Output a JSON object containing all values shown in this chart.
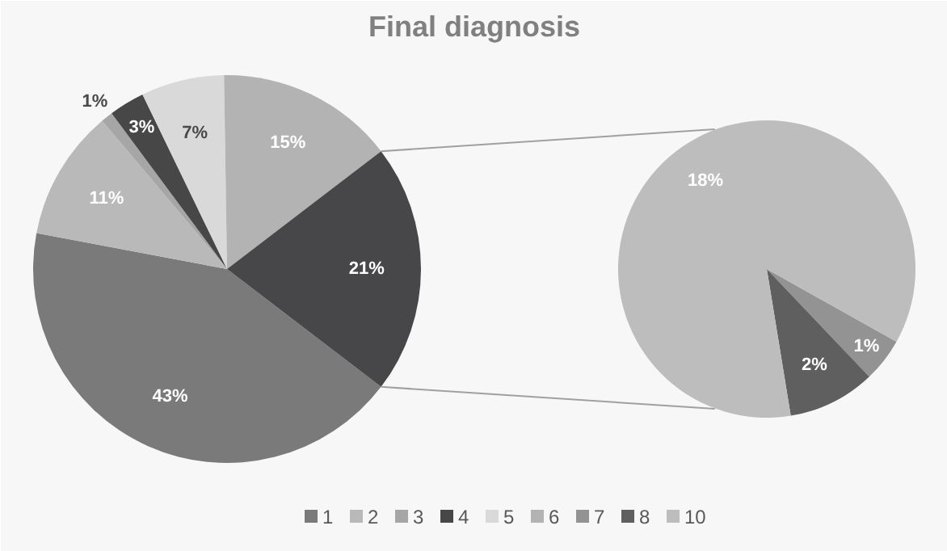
{
  "chart_data": [
    {
      "type": "pie",
      "title": "Final diagnosis",
      "categories": [
        "1",
        "2",
        "3",
        "4",
        "5",
        "6",
        null
      ],
      "values": [
        43,
        11,
        1,
        3,
        7,
        15,
        21
      ],
      "colors": [
        "#7a7a7a",
        "#b9b9b9",
        "#a6a6a6",
        "#474747",
        "#d9d9d9",
        "#b3b3b3",
        "#474749"
      ],
      "value_labels": [
        "43%",
        "11%",
        "1%",
        "3%",
        "7%",
        "15%",
        "21%"
      ],
      "legend": "bottom"
    },
    {
      "type": "pie",
      "categories": [
        "7",
        "8",
        "10"
      ],
      "values": [
        1,
        2,
        18
      ],
      "colors": [
        "#939393",
        "#5f5f5f",
        "#bdbdbd"
      ],
      "value_labels": [
        "1%",
        "2%",
        "18%"
      ],
      "legend": "bottom"
    }
  ]
}
